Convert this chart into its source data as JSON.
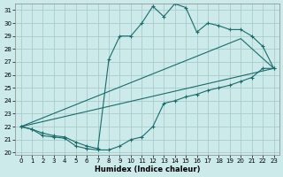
{
  "xlabel": "Humidex (Indice chaleur)",
  "background_color": "#cceaea",
  "grid_color": "#aacccc",
  "line_color": "#1a6b6b",
  "xlim": [
    -0.5,
    23.5
  ],
  "ylim": [
    19.8,
    31.5
  ],
  "xticks": [
    0,
    1,
    2,
    3,
    4,
    5,
    6,
    7,
    8,
    9,
    10,
    11,
    12,
    13,
    14,
    15,
    16,
    17,
    18,
    19,
    20,
    21,
    22,
    23
  ],
  "yticks": [
    20,
    21,
    22,
    23,
    24,
    25,
    26,
    27,
    28,
    29,
    30,
    31
  ],
  "line1_x": [
    0,
    1,
    2,
    3,
    4,
    5,
    6,
    7,
    8,
    9,
    10,
    11,
    12,
    13,
    14,
    15,
    16,
    17,
    18,
    19,
    20,
    21,
    22,
    23
  ],
  "line1_y": [
    22.0,
    21.8,
    21.3,
    21.2,
    21.1,
    20.5,
    20.3,
    20.2,
    20.2,
    20.5,
    21.0,
    21.2,
    22.0,
    23.8,
    24.0,
    24.3,
    24.5,
    24.8,
    25.0,
    25.2,
    25.5,
    25.8,
    26.5,
    26.5
  ],
  "line2_x": [
    0,
    1,
    2,
    3,
    4,
    5,
    6,
    7,
    8,
    9,
    10,
    11,
    12,
    13,
    14,
    15,
    16,
    17,
    18,
    19,
    20,
    21,
    22,
    23
  ],
  "line2_y": [
    22.0,
    21.8,
    21.5,
    21.3,
    21.2,
    20.8,
    20.5,
    20.3,
    27.2,
    29.0,
    29.0,
    30.0,
    31.3,
    30.5,
    31.5,
    31.2,
    29.3,
    30.0,
    29.8,
    29.5,
    29.5,
    29.0,
    28.2,
    26.5
  ],
  "line3_x": [
    0,
    23
  ],
  "line3_y": [
    22.0,
    26.5
  ],
  "line4_x": [
    0,
    20,
    23
  ],
  "line4_y": [
    22.0,
    28.8,
    26.5
  ]
}
